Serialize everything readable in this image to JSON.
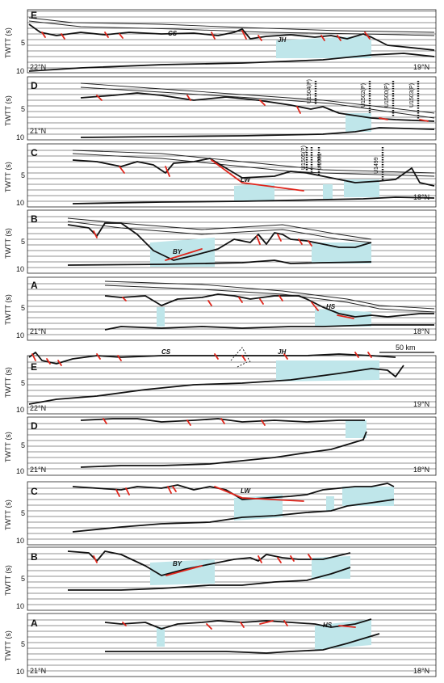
{
  "axis_label": "TWTT (s)",
  "ticks": [
    "5",
    "10"
  ],
  "scale_bar": "50 km",
  "top_set": [
    {
      "id": "E",
      "left_lat": "22°N",
      "right_lat": "19°N",
      "basins": [
        "CS",
        "JH"
      ],
      "sites": []
    },
    {
      "id": "D",
      "left_lat": "21°N",
      "right_lat": "",
      "basins": [],
      "sites": [
        "U1504(P)",
        "U1502(P)",
        "U1500(P)",
        "U1503(P)"
      ]
    },
    {
      "id": "C",
      "left_lat": "",
      "right_lat": "18°N",
      "basins": [
        "LW"
      ],
      "sites": [
        "U1505(P)",
        "U1501",
        "U1499"
      ]
    },
    {
      "id": "B",
      "left_lat": "",
      "right_lat": "",
      "basins": [
        "BY"
      ],
      "sites": []
    },
    {
      "id": "A",
      "left_lat": "21°N",
      "right_lat": "18°N",
      "basins": [
        "HS"
      ],
      "sites": []
    }
  ],
  "bottom_set": [
    {
      "id": "E",
      "left_lat": "22°N",
      "right_lat": "19°N",
      "basins": [
        "CS",
        "JH"
      ]
    },
    {
      "id": "D",
      "left_lat": "21°N",
      "right_lat": "18°N",
      "basins": []
    },
    {
      "id": "C",
      "left_lat": "",
      "right_lat": "",
      "basins": [
        "LW"
      ]
    },
    {
      "id": "B",
      "left_lat": "",
      "right_lat": "",
      "basins": [
        "BY"
      ]
    },
    {
      "id": "A",
      "left_lat": "21°N",
      "right_lat": "18°N",
      "basins": [
        "HS"
      ]
    }
  ],
  "colors": {
    "fault": "#e0251b",
    "basin_fill": "#bfe6ea",
    "line": "#111111"
  }
}
